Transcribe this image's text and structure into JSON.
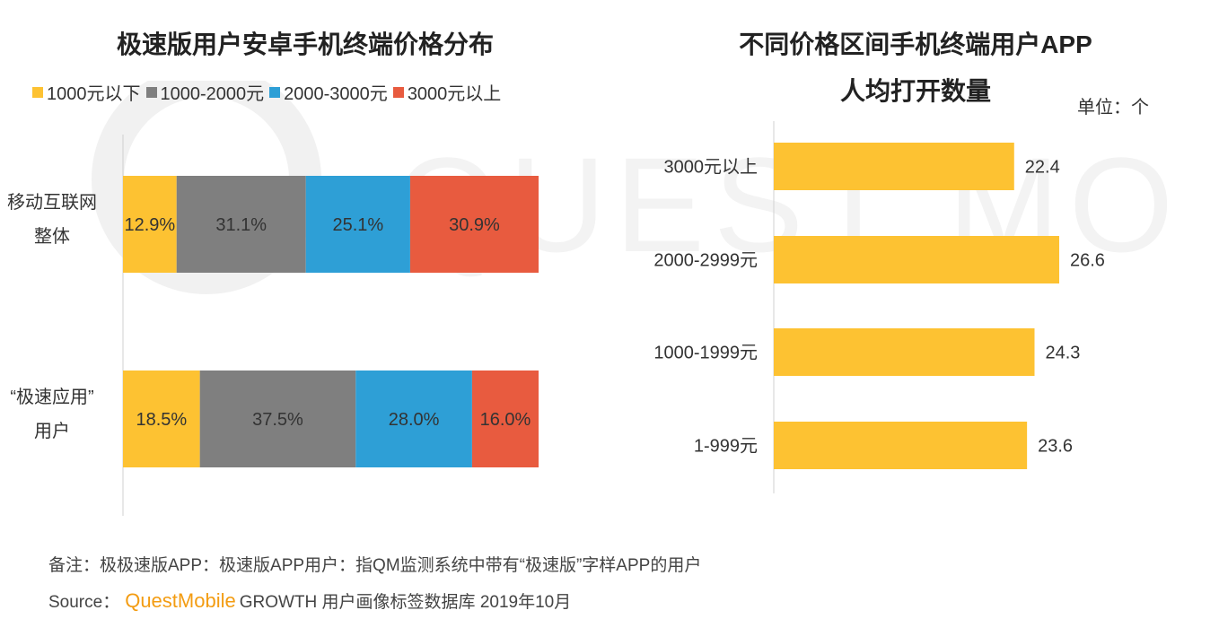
{
  "colors": {
    "yellow": "#FDC232",
    "gray": "#7F7F7F",
    "blue": "#2E9FD6",
    "red": "#E85B3F",
    "axis": "#D0D0D0"
  },
  "chart_data": [
    {
      "type": "bar",
      "orientation": "horizontal",
      "stacked": true,
      "title": "极速版用户安卓手机终端价格分布",
      "legend_position": "top",
      "categories": [
        [
          "移动互联网",
          "整体"
        ],
        [
          "“极速应用”",
          "用户"
        ]
      ],
      "series": [
        {
          "name": "1000元以下",
          "color": "#FDC232",
          "values": [
            12.9,
            18.5
          ],
          "labels": [
            "12.9%",
            "18.5%"
          ]
        },
        {
          "name": "1000-2000元",
          "color": "#7F7F7F",
          "values": [
            31.1,
            37.5
          ],
          "labels": [
            "31.1%",
            "37.5%"
          ]
        },
        {
          "name": "2000-3000元",
          "color": "#2E9FD6",
          "values": [
            25.1,
            28.0
          ],
          "labels": [
            "25.1%",
            "28.0%"
          ]
        },
        {
          "name": "3000元以上",
          "color": "#E85B3F",
          "values": [
            30.9,
            16.0
          ],
          "labels": [
            "30.9%",
            "16.0%"
          ]
        }
      ],
      "xlim": [
        0,
        100
      ]
    },
    {
      "type": "bar",
      "orientation": "horizontal",
      "title_lines": [
        "不同价格区间手机终端用户APP",
        "人均打开数量"
      ],
      "unit": "单位：个",
      "categories": [
        "3000元以上",
        "2000-2999元",
        "1000-1999元",
        "1-999元"
      ],
      "values": [
        22.4,
        26.6,
        24.3,
        23.6
      ],
      "labels": [
        "22.4",
        "26.6",
        "24.3",
        "23.6"
      ],
      "color": "#FDC232",
      "xlim": [
        0,
        26.6
      ]
    }
  ],
  "footnote": "备注：极极速版APP：极速版APP用户：指QM监测系统中带有“极速版”字样APP的用户",
  "source": {
    "prefix": "Source：",
    "brand": "QuestMobile",
    "suffix": "GROWTH 用户画像标签数据库 2019年10月"
  }
}
